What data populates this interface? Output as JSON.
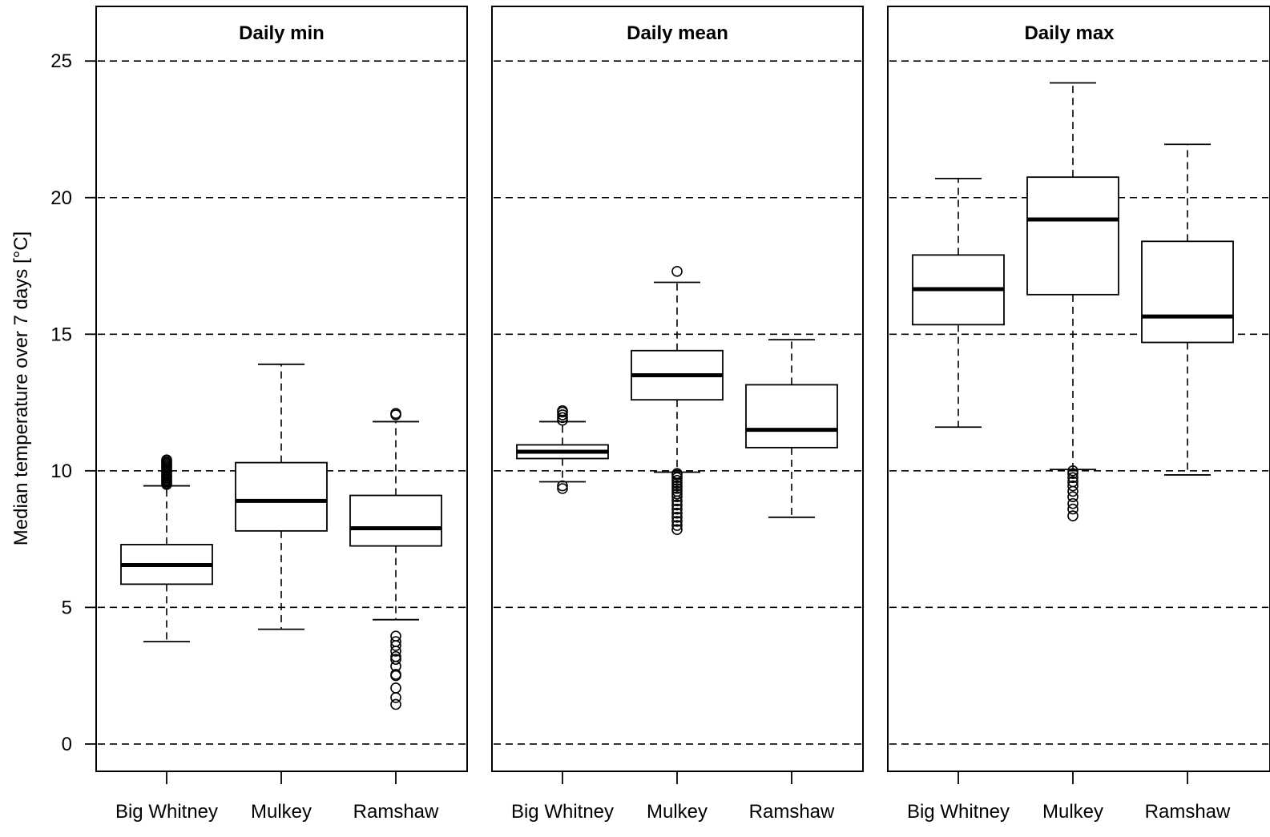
{
  "chart_data": {
    "type": "boxplot",
    "ylabel": "Median temperature over 7 days [°C]",
    "ylim": [
      -1,
      27
    ],
    "yticks": [
      0,
      5,
      10,
      15,
      20,
      25
    ],
    "grid": "horizontal dashed at y ticks",
    "categories": [
      "Big Whitney",
      "Mulkey",
      "Ramshaw"
    ],
    "panels": [
      {
        "title": "Daily min",
        "boxes": [
          {
            "category": "Big Whitney",
            "whisker_low": 3.75,
            "q1": 5.85,
            "median": 6.55,
            "q3": 7.3,
            "whisker_high": 9.45,
            "outliers": [
              9.5,
              9.55,
              9.6,
              9.65,
              9.7,
              9.75,
              9.8,
              9.85,
              9.9,
              9.95,
              10.0,
              10.05,
              10.1,
              10.15,
              10.2,
              10.25,
              10.3,
              10.35,
              10.4
            ]
          },
          {
            "category": "Mulkey",
            "whisker_low": 4.2,
            "q1": 7.8,
            "median": 8.9,
            "q3": 10.3,
            "whisker_high": 13.9,
            "outliers": []
          },
          {
            "category": "Ramshaw",
            "whisker_low": 4.55,
            "q1": 7.25,
            "median": 7.9,
            "q3": 9.1,
            "whisker_high": 11.8,
            "outliers": [
              12.05,
              12.1,
              1.45,
              1.7,
              2.05,
              2.5,
              2.55,
              2.85,
              3.1,
              3.2,
              3.4,
              3.6,
              3.75,
              3.95
            ]
          }
        ]
      },
      {
        "title": "Daily mean",
        "boxes": [
          {
            "category": "Big Whitney",
            "whisker_low": 9.6,
            "q1": 10.45,
            "median": 10.7,
            "q3": 10.95,
            "whisker_high": 11.8,
            "outliers": [
              9.35,
              9.45,
              11.85,
              11.95,
              12.05,
              12.15,
              12.2
            ]
          },
          {
            "category": "Mulkey",
            "whisker_low": 9.95,
            "q1": 12.6,
            "median": 13.5,
            "q3": 14.4,
            "whisker_high": 16.9,
            "outliers": [
              17.3,
              7.85,
              8.0,
              8.15,
              8.3,
              8.45,
              8.6,
              8.75,
              8.9,
              9.05,
              9.15,
              9.25,
              9.35,
              9.45,
              9.55,
              9.65,
              9.75,
              9.85,
              9.9
            ]
          },
          {
            "category": "Ramshaw",
            "whisker_low": 8.3,
            "q1": 10.85,
            "median": 11.5,
            "q3": 13.15,
            "whisker_high": 14.8,
            "outliers": []
          }
        ]
      },
      {
        "title": "Daily max",
        "boxes": [
          {
            "category": "Big Whitney",
            "whisker_low": 11.6,
            "q1": 15.35,
            "median": 16.65,
            "q3": 17.9,
            "whisker_high": 20.7,
            "outliers": []
          },
          {
            "category": "Mulkey",
            "whisker_low": 10.05,
            "q1": 16.45,
            "median": 19.2,
            "q3": 20.75,
            "whisker_high": 24.2,
            "outliers": [
              8.35,
              8.6,
              8.8,
              9.05,
              9.25,
              9.45,
              9.6,
              9.75,
              9.9,
              10.0
            ]
          },
          {
            "category": "Ramshaw",
            "whisker_low": 9.85,
            "q1": 14.7,
            "median": 15.65,
            "q3": 18.4,
            "whisker_high": 21.95,
            "outliers": []
          }
        ]
      }
    ]
  }
}
